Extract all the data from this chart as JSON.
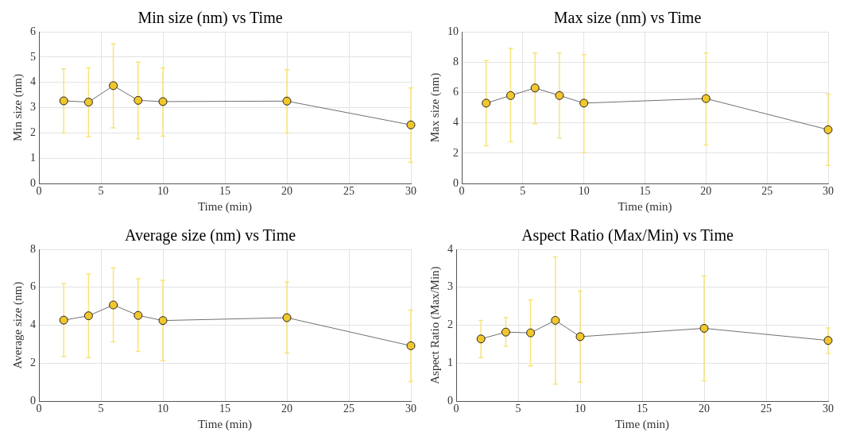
{
  "chart_data": [
    {
      "type": "line",
      "title": "Min size (nm) vs Time",
      "xlabel": "Time (min)",
      "ylabel": "Min size (nm)",
      "x": [
        2,
        4,
        6,
        8,
        10,
        20,
        30
      ],
      "xlim": [
        0,
        30
      ],
      "xticks": [
        0,
        5,
        10,
        15,
        20,
        25,
        30
      ],
      "ylim": [
        0,
        6
      ],
      "yticks": [
        0,
        1,
        2,
        3,
        4,
        5,
        6
      ],
      "grid": true,
      "legend": false,
      "marker": "circle",
      "line_style": "solid",
      "series": [
        {
          "color": "#707070",
          "colors": [
            "#f2c72c",
            "#f2c72c",
            "#f2c72c",
            "#f2c72c",
            "#f2c72c",
            "#f2c72c",
            "#f2c72c"
          ],
          "values": [
            3.27,
            3.22,
            3.87,
            3.29,
            3.24,
            3.26,
            2.32
          ],
          "errors": [
            [
              2.0,
              4.53
            ],
            [
              1.85,
              4.57
            ],
            [
              2.2,
              5.53
            ],
            [
              1.77,
              4.8
            ],
            [
              1.87,
              4.57
            ],
            [
              2.0,
              4.5
            ],
            [
              0.84,
              3.78
            ]
          ]
        }
      ]
    },
    {
      "type": "line",
      "title": "Max size (nm) vs Time",
      "xlabel": "Time (min)",
      "ylabel": "Max size (nm)",
      "x": [
        2,
        4,
        6,
        8,
        10,
        20,
        30
      ],
      "xlim": [
        0,
        30
      ],
      "xticks": [
        0,
        5,
        10,
        15,
        20,
        25,
        30
      ],
      "ylim": [
        0,
        10
      ],
      "yticks": [
        0,
        2,
        4,
        6,
        8,
        10
      ],
      "grid": true,
      "legend": false,
      "marker": "circle",
      "line_style": "solid",
      "series": [
        {
          "color": "#707070",
          "colors": [
            "#f2c72c",
            "#f2c72c",
            "#f2c72c",
            "#f2c72c",
            "#f2c72c",
            "#f2c72c",
            "#f2c72c"
          ],
          "values": [
            5.3,
            5.8,
            6.3,
            5.8,
            5.3,
            5.6,
            3.55
          ],
          "errors": [
            [
              2.5,
              8.1
            ],
            [
              2.75,
              8.9
            ],
            [
              3.95,
              8.6
            ],
            [
              3.0,
              8.6
            ],
            [
              2.05,
              8.5
            ],
            [
              2.55,
              8.6
            ],
            [
              1.2,
              5.9
            ]
          ]
        }
      ]
    },
    {
      "type": "line",
      "title": "Average size (nm) vs Time",
      "xlabel": "Time (min)",
      "ylabel": "Average size (nm)",
      "x": [
        2,
        4,
        6,
        8,
        10,
        20,
        30
      ],
      "xlim": [
        0,
        30
      ],
      "xticks": [
        0,
        5,
        10,
        15,
        20,
        25,
        30
      ],
      "ylim": [
        0,
        8
      ],
      "yticks": [
        0,
        2,
        4,
        6,
        8
      ],
      "grid": true,
      "legend": false,
      "marker": "circle",
      "line_style": "solid",
      "series": [
        {
          "color": "#707070",
          "colors": [
            "#f2c72c",
            "#f2c72c",
            "#f2c72c",
            "#f2c72c",
            "#f2c72c",
            "#f2c72c",
            "#f2c72c"
          ],
          "values": [
            4.27,
            4.5,
            5.07,
            4.52,
            4.25,
            4.4,
            2.92
          ],
          "errors": [
            [
              2.35,
              6.2
            ],
            [
              2.3,
              6.7
            ],
            [
              3.13,
              7.03
            ],
            [
              2.62,
              6.45
            ],
            [
              2.13,
              6.37
            ],
            [
              2.53,
              6.28
            ],
            [
              1.03,
              4.8
            ]
          ]
        }
      ]
    },
    {
      "type": "line",
      "title": "Aspect Ratio (Max/Min) vs Time",
      "xlabel": "Time (min)",
      "ylabel": "Aspect Ratio (Max/Min)",
      "x": [
        2,
        4,
        6,
        8,
        10,
        20,
        30
      ],
      "xlim": [
        0,
        30
      ],
      "xticks": [
        0,
        5,
        10,
        15,
        20,
        25,
        30
      ],
      "ylim": [
        0,
        4
      ],
      "yticks": [
        0,
        1,
        2,
        3,
        4
      ],
      "grid": true,
      "legend": false,
      "marker": "circle",
      "line_style": "solid",
      "series": [
        {
          "color": "#707070",
          "colors": [
            "#f2c72c",
            "#f2c72c",
            "#f2c72c",
            "#f2c72c",
            "#f2c72c",
            "#f2c72c",
            "#f2c72c"
          ],
          "values": [
            1.64,
            1.82,
            1.8,
            2.13,
            1.7,
            1.92,
            1.6
          ],
          "errors": [
            [
              1.15,
              2.13
            ],
            [
              1.45,
              2.2
            ],
            [
              0.93,
              2.67
            ],
            [
              0.45,
              3.8
            ],
            [
              0.5,
              2.9
            ],
            [
              0.54,
              3.3
            ],
            [
              1.26,
              1.93
            ]
          ]
        }
      ]
    }
  ]
}
